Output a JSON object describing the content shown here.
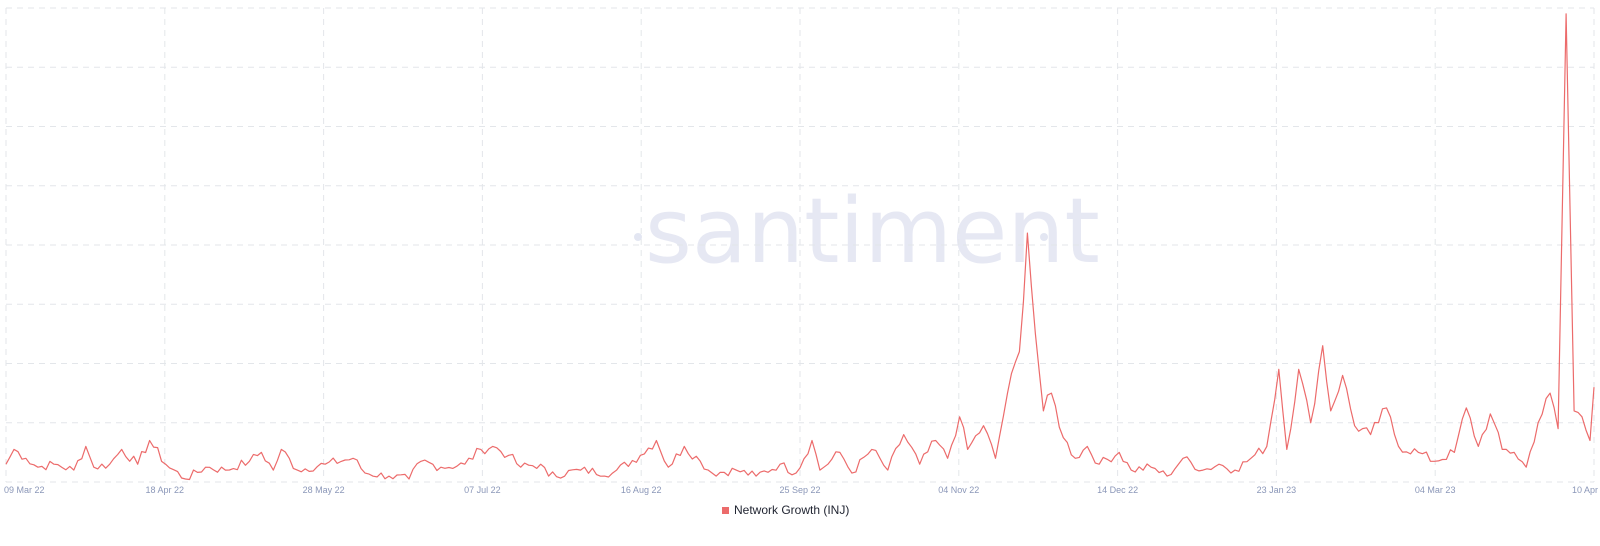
{
  "watermark": {
    "text": "santiment"
  },
  "chart_data": {
    "type": "line",
    "title": "",
    "xlabel": "",
    "ylabel": "",
    "grid": true,
    "legend_position": "bottom-center",
    "x_tick_labels": [
      "09 Mar 22",
      "18 Apr 22",
      "28 May 22",
      "07 Jul 22",
      "16 Aug 22",
      "25 Sep 22",
      "04 Nov 22",
      "14 Dec 22",
      "23 Jan 23",
      "04 Mar 23",
      "10 Apr"
    ],
    "x_range": [
      "2022-03-08",
      "2023-04-10"
    ],
    "ylim": [
      0,
      8
    ],
    "series": [
      {
        "name": "Network Growth (INJ)",
        "color": "#ec6b6b",
        "anchors": [
          [
            "2022-03-08",
            0.3
          ],
          [
            "2022-03-10",
            0.55
          ],
          [
            "2022-03-13",
            0.4
          ],
          [
            "2022-03-16",
            0.25
          ],
          [
            "2022-03-20",
            0.3
          ],
          [
            "2022-03-25",
            0.2
          ],
          [
            "2022-03-28",
            0.6
          ],
          [
            "2022-03-30",
            0.25
          ],
          [
            "2022-04-03",
            0.3
          ],
          [
            "2022-04-06",
            0.55
          ],
          [
            "2022-04-10",
            0.3
          ],
          [
            "2022-04-13",
            0.7
          ],
          [
            "2022-04-17",
            0.3
          ],
          [
            "2022-04-22",
            0.05
          ],
          [
            "2022-04-27",
            0.25
          ],
          [
            "2022-05-02",
            0.2
          ],
          [
            "2022-05-08",
            0.35
          ],
          [
            "2022-05-11",
            0.5
          ],
          [
            "2022-05-14",
            0.2
          ],
          [
            "2022-05-16",
            0.55
          ],
          [
            "2022-05-20",
            0.2
          ],
          [
            "2022-05-27",
            0.3
          ],
          [
            "2022-06-03",
            0.4
          ],
          [
            "2022-06-06",
            0.15
          ],
          [
            "2022-06-12",
            0.1
          ],
          [
            "2022-06-17",
            0.05
          ],
          [
            "2022-06-20",
            0.35
          ],
          [
            "2022-06-25",
            0.25
          ],
          [
            "2022-07-01",
            0.3
          ],
          [
            "2022-07-05",
            0.55
          ],
          [
            "2022-07-08",
            0.6
          ],
          [
            "2022-07-12",
            0.45
          ],
          [
            "2022-07-15",
            0.25
          ],
          [
            "2022-07-20",
            0.3
          ],
          [
            "2022-07-22",
            0.1
          ],
          [
            "2022-07-30",
            0.2
          ],
          [
            "2022-08-07",
            0.15
          ],
          [
            "2022-08-14",
            0.45
          ],
          [
            "2022-08-18",
            0.7
          ],
          [
            "2022-08-21",
            0.25
          ],
          [
            "2022-08-25",
            0.6
          ],
          [
            "2022-08-29",
            0.35
          ],
          [
            "2022-09-01",
            0.15
          ],
          [
            "2022-09-07",
            0.2
          ],
          [
            "2022-09-12",
            0.1
          ],
          [
            "2022-09-18",
            0.3
          ],
          [
            "2022-09-22",
            0.15
          ],
          [
            "2022-09-26",
            0.7
          ],
          [
            "2022-09-28",
            0.2
          ],
          [
            "2022-10-03",
            0.5
          ],
          [
            "2022-10-06",
            0.15
          ],
          [
            "2022-10-11",
            0.55
          ],
          [
            "2022-10-15",
            0.2
          ],
          [
            "2022-10-19",
            0.8
          ],
          [
            "2022-10-23",
            0.3
          ],
          [
            "2022-10-27",
            0.7
          ],
          [
            "2022-10-30",
            0.4
          ],
          [
            "2022-11-02",
            1.1
          ],
          [
            "2022-11-04",
            0.55
          ],
          [
            "2022-11-08",
            0.95
          ],
          [
            "2022-11-11",
            0.4
          ],
          [
            "2022-11-14",
            1.5
          ],
          [
            "2022-11-17",
            2.2
          ],
          [
            "2022-11-19",
            4.2
          ],
          [
            "2022-11-21",
            2.5
          ],
          [
            "2022-11-23",
            1.2
          ],
          [
            "2022-11-25",
            1.5
          ],
          [
            "2022-11-28",
            0.75
          ],
          [
            "2022-12-01",
            0.4
          ],
          [
            "2022-12-04",
            0.6
          ],
          [
            "2022-12-07",
            0.3
          ],
          [
            "2022-12-12",
            0.5
          ],
          [
            "2022-12-15",
            0.2
          ],
          [
            "2022-12-20",
            0.25
          ],
          [
            "2022-12-24",
            0.1
          ],
          [
            "2022-12-28",
            0.4
          ],
          [
            "2023-01-02",
            0.2
          ],
          [
            "2023-01-06",
            0.3
          ],
          [
            "2023-01-10",
            0.2
          ],
          [
            "2023-01-14",
            0.4
          ],
          [
            "2023-01-18",
            0.6
          ],
          [
            "2023-01-21",
            1.9
          ],
          [
            "2023-01-23",
            0.55
          ],
          [
            "2023-01-26",
            1.9
          ],
          [
            "2023-01-29",
            1.0
          ],
          [
            "2023-02-01",
            2.3
          ],
          [
            "2023-02-03",
            1.2
          ],
          [
            "2023-02-06",
            1.8
          ],
          [
            "2023-02-09",
            0.95
          ],
          [
            "2023-02-13",
            0.8
          ],
          [
            "2023-02-17",
            1.25
          ],
          [
            "2023-02-20",
            0.6
          ],
          [
            "2023-02-25",
            0.5
          ],
          [
            "2023-03-01",
            0.35
          ],
          [
            "2023-03-06",
            0.5
          ],
          [
            "2023-03-09",
            1.25
          ],
          [
            "2023-03-12",
            0.6
          ],
          [
            "2023-03-15",
            1.15
          ],
          [
            "2023-03-18",
            0.55
          ],
          [
            "2023-03-21",
            0.5
          ],
          [
            "2023-03-24",
            0.25
          ],
          [
            "2023-03-27",
            1.0
          ],
          [
            "2023-03-30",
            1.5
          ],
          [
            "2023-04-01",
            0.9
          ],
          [
            "2023-04-03",
            7.9
          ],
          [
            "2023-04-05",
            1.2
          ],
          [
            "2023-04-07",
            1.1
          ],
          [
            "2023-04-09",
            0.7
          ],
          [
            "2023-04-10",
            1.6
          ]
        ]
      }
    ]
  }
}
